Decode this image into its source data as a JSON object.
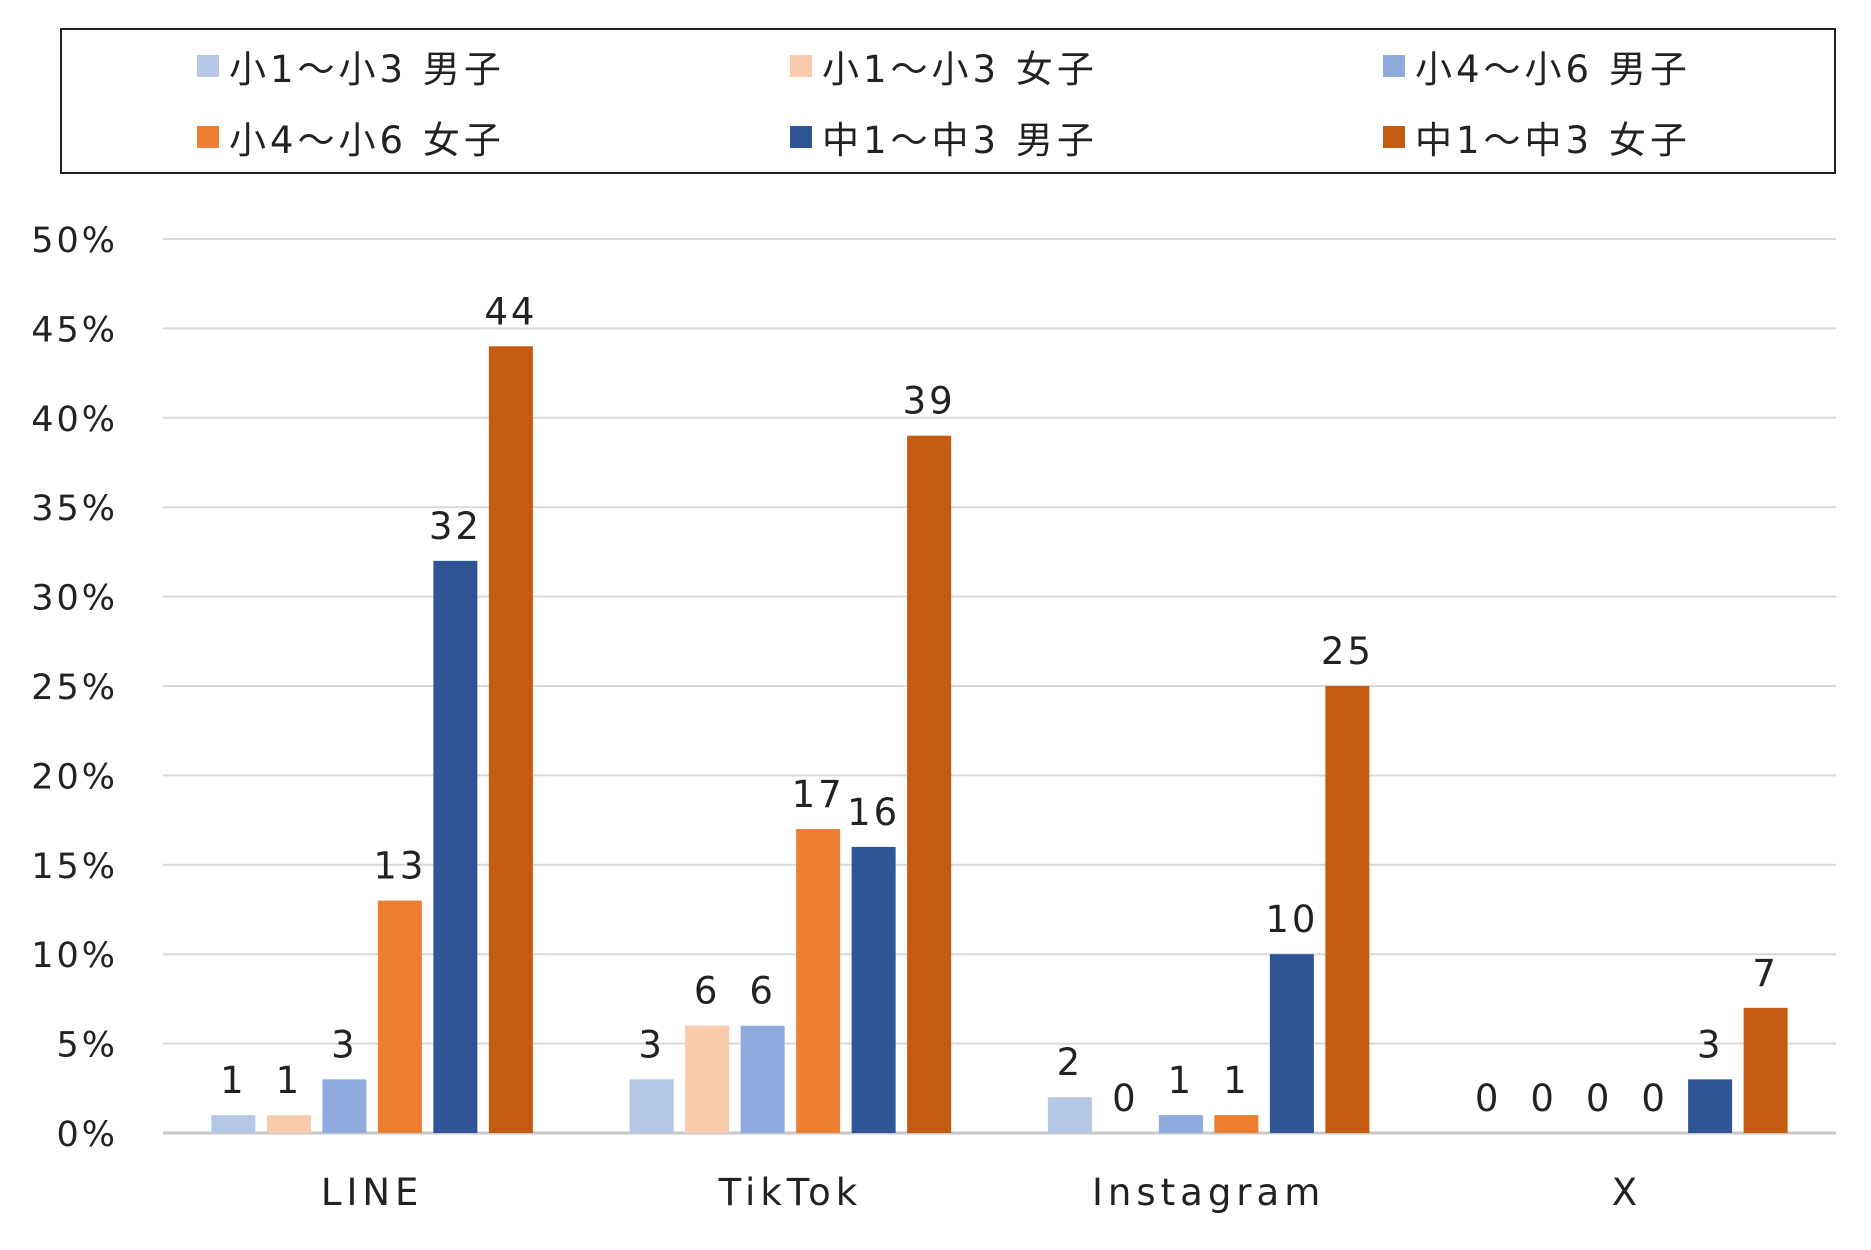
{
  "chart_data": {
    "type": "bar",
    "categories": [
      "LINE",
      "TikTok",
      "Instagram",
      "X"
    ],
    "series": [
      {
        "name": "小1〜小3 男子",
        "color": "#b4c7e7",
        "values": [
          1,
          3,
          2,
          0
        ]
      },
      {
        "name": "小1〜小3 女子",
        "color": "#f8cbad",
        "values": [
          1,
          6,
          0,
          0
        ]
      },
      {
        "name": "小4〜小6 男子",
        "color": "#8faadc",
        "values": [
          3,
          6,
          1,
          0
        ]
      },
      {
        "name": "小4〜小6 女子",
        "color": "#ed7d31",
        "values": [
          13,
          17,
          1,
          0
        ]
      },
      {
        "name": "中1〜中3 男子",
        "color": "#2f5597",
        "values": [
          32,
          16,
          10,
          3
        ]
      },
      {
        "name": "中1〜中3 女子",
        "color": "#c55a11",
        "values": [
          44,
          39,
          25,
          7
        ]
      }
    ],
    "data_labels": [
      [
        "1",
        "3",
        "2",
        "0"
      ],
      [
        "1",
        "6",
        "0",
        "0"
      ],
      [
        "3",
        "6",
        "1",
        "0"
      ],
      [
        "13",
        "17",
        "1",
        "0"
      ],
      [
        "32",
        "16",
        "10",
        "3"
      ],
      [
        "44",
        "39",
        "25",
        "7"
      ]
    ],
    "y_ticks": [
      "0%",
      "5%",
      "10%",
      "15%",
      "20%",
      "25%",
      "30%",
      "35%",
      "40%",
      "45%",
      "50%"
    ],
    "ylim": [
      0,
      50
    ],
    "y_unit": "%",
    "grid": true,
    "legend_position": "top",
    "title": "",
    "xlabel": "",
    "ylabel": ""
  }
}
